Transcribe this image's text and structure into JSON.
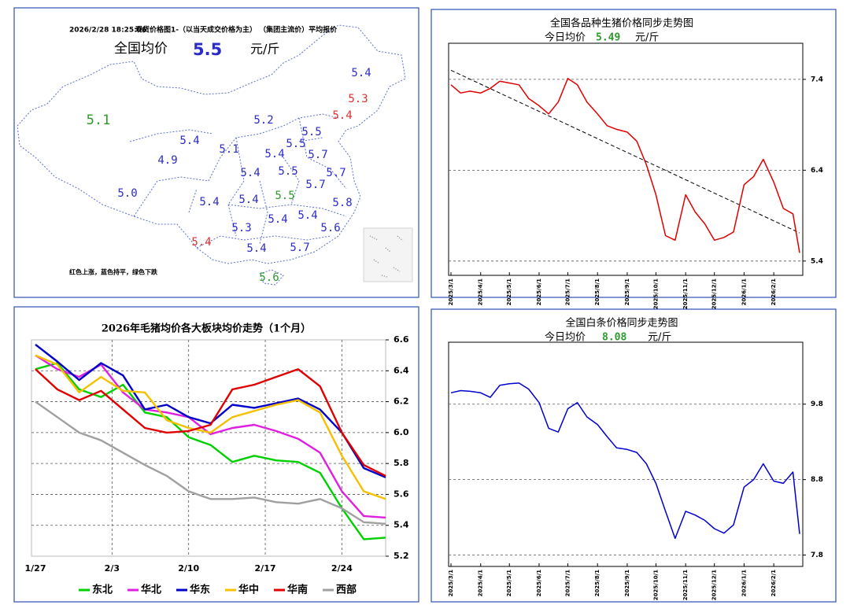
{
  "map": {
    "timestamp": "2026/2/28  18:25:06",
    "header": "现货价格图1-（以当天成交价格为主）  （集团主流价）平均报价",
    "avg_label": "全国均价",
    "avg_value": 5.5,
    "avg_unit": "元/斤",
    "regions": [
      {
        "value": 5.4,
        "color": "#2b2bc8"
      },
      {
        "value": 5.3,
        "color": "#e03030"
      },
      {
        "value": 5.4,
        "color": "#e03030"
      },
      {
        "value": 5.1,
        "color": "#2a9a2a"
      },
      {
        "value": 5.2,
        "color": "#2b2bc8"
      },
      {
        "value": 5.5,
        "color": "#2b2bc8"
      },
      {
        "value": 5.4,
        "color": "#2b2bc8"
      },
      {
        "value": 5.5,
        "color": "#2b2bc8"
      },
      {
        "value": 5.1,
        "color": "#2b2bc8"
      },
      {
        "value": 5.4,
        "color": "#2b2bc8"
      },
      {
        "value": 5.7,
        "color": "#2b2bc8"
      },
      {
        "value": 4.9,
        "color": "#2b2bc8"
      },
      {
        "value": 5.4,
        "color": "#2b2bc8"
      },
      {
        "value": 5.5,
        "color": "#2b2bc8"
      },
      {
        "value": 5.7,
        "color": "#2b2bc8"
      },
      {
        "value": 5.7,
        "color": "#2b2bc8"
      },
      {
        "value": 5,
        "label": "5.0",
        "color": "#2b2bc8"
      },
      {
        "value": 5.5,
        "color": "#2a9a2a"
      },
      {
        "value": 5.4,
        "color": "#2b2bc8"
      },
      {
        "value": 5.4,
        "color": "#2b2bc8"
      },
      {
        "value": 5.8,
        "color": "#2b2bc8"
      },
      {
        "value": 5.4,
        "color": "#2b2bc8"
      },
      {
        "value": 5.4,
        "color": "#2b2bc8"
      },
      {
        "value": 5.6,
        "color": "#2b2bc8"
      },
      {
        "value": 5.3,
        "color": "#2b2bc8"
      },
      {
        "value": 5.4,
        "color": "#e03030"
      },
      {
        "value": 5.4,
        "color": "#2b2bc8"
      },
      {
        "value": 5.7,
        "color": "#2b2bc8"
      },
      {
        "value": 5.6,
        "color": "#2a9a2a"
      }
    ],
    "legend_note": "红色上涨，蓝色持平，绿色下跌"
  },
  "chart_data": [
    {
      "type": "line",
      "title": "全国各品种生猪价格同步走势图",
      "today_label": "今日均价",
      "today_value": 5.49,
      "unit": "元/斤",
      "x": [
        "2025/3/1",
        "2025/3/11",
        "2025/3/21",
        "2025/4/1",
        "2025/4/11",
        "2025/4/21",
        "2025/5/1",
        "2025/5/11",
        "2025/5/21",
        "2025/6/1",
        "2025/6/11",
        "2025/6/21",
        "2025/7/1",
        "2025/7/11",
        "2025/7/21",
        "2025/8/1",
        "2025/8/11",
        "2025/8/21",
        "2025/9/1",
        "2025/9/11",
        "2025/9/21",
        "2025/10/1",
        "2025/10/11",
        "2025/10/21",
        "2025/11/1",
        "2025/11/11",
        "2025/11/21",
        "2025/12/1",
        "2025/12/11",
        "2025/12/21",
        "2026/1/1",
        "2026/1/11",
        "2026/1/21",
        "2026/2/1",
        "2026/2/11",
        "2026/2/21",
        "2026/2/28"
      ],
      "xlim": [
        "2025/3/1",
        "2026/2/28"
      ],
      "xticks": [
        "2025/3/1",
        "2025/4/1",
        "2025/5/1",
        "2025/6/1",
        "2025/7/1",
        "2025/8/1",
        "2025/9/1",
        "2025/10/1",
        "2025/11/1",
        "2025/12/1",
        "2026/1/1",
        "2026/2/1"
      ],
      "ylim": [
        5.26,
        7.78
      ],
      "yticks": [
        5.4,
        6.4,
        7.4
      ],
      "grid": true,
      "series": [
        {
          "color": "#e00000",
          "values": [
            7.34,
            7.25,
            7.27,
            7.25,
            7.3,
            7.38,
            7.36,
            7.34,
            7.19,
            7.11,
            7.02,
            7.15,
            7.41,
            7.34,
            7.15,
            7.02,
            6.89,
            6.85,
            6.82,
            6.72,
            6.46,
            6.13,
            5.68,
            5.63,
            6.13,
            5.94,
            5.81,
            5.63,
            5.66,
            5.72,
            6.24,
            6.33,
            6.52,
            6.27,
            5.98,
            5.92,
            5.49
          ]
        }
      ],
      "trend_line": {
        "values": [
          7.5,
          5.71
        ]
      }
    },
    {
      "type": "line",
      "title": "2026年毛猪均价各大板块均价走势（1个月）",
      "x": [
        "1/27",
        "1/29",
        "1/31",
        "2/2",
        "2/4",
        "2/6",
        "2/8",
        "2/10",
        "2/12",
        "2/14",
        "2/16",
        "2/18",
        "2/20",
        "2/22",
        "2/24",
        "2/26",
        "2/28"
      ],
      "xlim": [
        "1/27",
        "2/28"
      ],
      "xticks": [
        "1/27",
        "2/3",
        "2/10",
        "2/17",
        "2/24"
      ],
      "ylim": [
        5.2,
        6.6
      ],
      "yticks": [
        5.2,
        5.4,
        5.6,
        5.8,
        {
          "value": 6,
          "label": "6.0"
        },
        6.2,
        6.4,
        6.6
      ],
      "grid": true,
      "legend": "bottom",
      "series": [
        {
          "name": "东北",
          "color": "#00d000",
          "values": [
            6.41,
            6.45,
            6.28,
            6.23,
            6.31,
            6.13,
            6.1,
            5.97,
            5.92,
            5.81,
            5.85,
            5.82,
            5.81,
            5.74,
            5.51,
            5.31,
            5.32
          ]
        },
        {
          "name": "华北",
          "color": "#e020e0",
          "values": [
            6.5,
            6.41,
            6.36,
            6.44,
            6.26,
            6.15,
            6.13,
            6.1,
            5.99,
            6.03,
            6.05,
            6.01,
            5.96,
            5.87,
            5.62,
            5.46,
            5.45
          ]
        },
        {
          "name": "华东",
          "color": "#0000c8",
          "values": [
            6.57,
            6.46,
            6.34,
            6.45,
            6.37,
            6.15,
            6.18,
            6.1,
            6.06,
            6.18,
            6.16,
            6.19,
            6.22,
            6.15,
            6,
            5.77,
            5.71
          ]
        },
        {
          "name": "华中",
          "color": "#f5c000",
          "values": [
            6.5,
            6.44,
            6.26,
            6.36,
            6.27,
            6.26,
            6.08,
            6.03,
            6,
            6.1,
            6.14,
            6.18,
            6.21,
            6.13,
            5.85,
            5.62,
            5.57
          ]
        },
        {
          "name": "华南",
          "color": "#e00000",
          "values": [
            6.41,
            6.28,
            6.21,
            6.27,
            6.15,
            6.03,
            6,
            6.01,
            6.05,
            6.28,
            6.31,
            6.36,
            6.41,
            6.3,
            6,
            5.79,
            5.72
          ]
        },
        {
          "name": "西部",
          "color": "#a0a0a0",
          "values": [
            6.2,
            6.1,
            6,
            5.95,
            5.87,
            5.79,
            5.72,
            5.62,
            5.57,
            5.57,
            5.58,
            5.55,
            5.54,
            5.57,
            5.51,
            5.42,
            5.41
          ]
        }
      ]
    },
    {
      "type": "line",
      "title": "全国白条价格同步走势图",
      "today_label": "今日均价",
      "today_value": 8.08,
      "unit": "元/斤",
      "x": [
        "2025/3/1",
        "2025/3/11",
        "2025/3/21",
        "2025/4/1",
        "2025/4/11",
        "2025/4/21",
        "2025/5/1",
        "2025/5/11",
        "2025/5/21",
        "2025/6/1",
        "2025/6/11",
        "2025/6/21",
        "2025/7/1",
        "2025/7/11",
        "2025/7/21",
        "2025/8/1",
        "2025/8/11",
        "2025/8/21",
        "2025/9/1",
        "2025/9/11",
        "2025/9/21",
        "2025/10/1",
        "2025/10/11",
        "2025/10/21",
        "2025/11/1",
        "2025/11/11",
        "2025/11/21",
        "2025/12/1",
        "2025/12/11",
        "2025/12/21",
        "2026/1/1",
        "2026/1/11",
        "2026/1/21",
        "2026/2/1",
        "2026/2/11",
        "2026/2/21",
        "2026/2/28"
      ],
      "xlim": [
        "2025/3/1",
        "2026/2/28"
      ],
      "xticks": [
        "2025/3/1",
        "2025/4/1",
        "2025/5/1",
        "2025/6/1",
        "2025/7/1",
        "2025/8/1",
        "2025/9/1",
        "2025/10/1",
        "2025/11/1",
        "2025/12/1",
        "2026/1/1",
        "2026/2/1"
      ],
      "ylim": [
        7.67,
        10.6
      ],
      "yticks": [
        7.8,
        8.8,
        9.8
      ],
      "grid": true,
      "series": [
        {
          "color": "#0000d0",
          "values": [
            9.95,
            9.98,
            9.97,
            9.95,
            9.89,
            10.05,
            10.07,
            10.08,
            10,
            9.82,
            9.48,
            9.43,
            9.74,
            9.82,
            9.63,
            9.53,
            9.37,
            9.22,
            9.2,
            9.16,
            9.01,
            8.75,
            8.38,
            8.02,
            8.38,
            8.33,
            8.26,
            8.15,
            8.09,
            8.2,
            8.7,
            8.8,
            9.01,
            8.78,
            8.75,
            8.9,
            8.08
          ]
        }
      ]
    }
  ]
}
